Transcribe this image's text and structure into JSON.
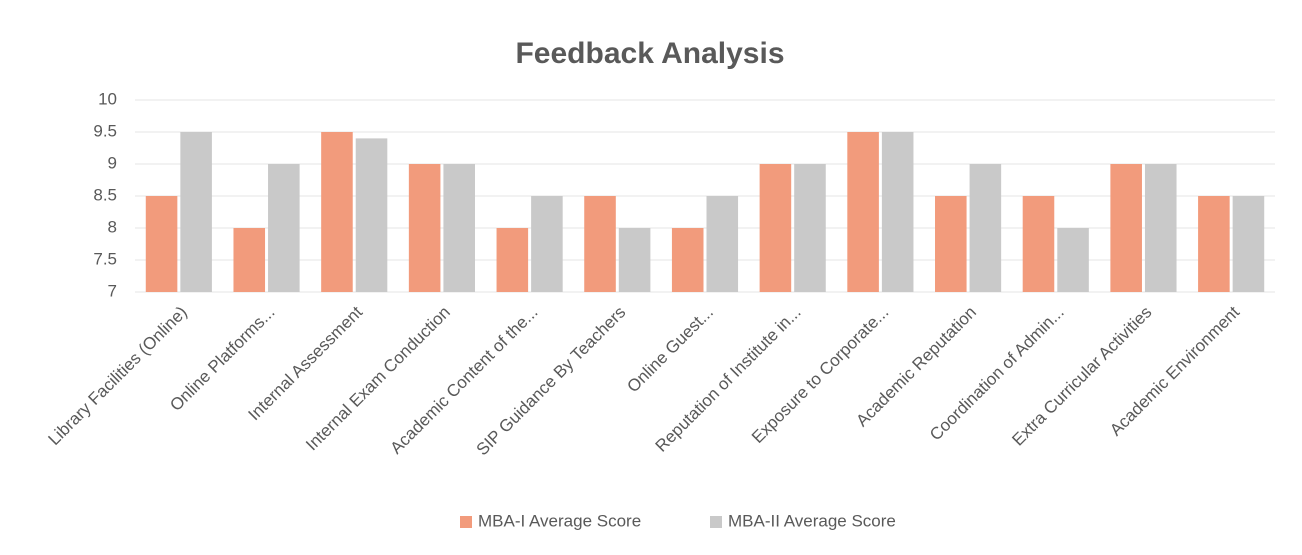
{
  "chart_data": {
    "type": "bar",
    "title": "Feedback Analysis",
    "categories": [
      "Library Facilities (Online)",
      "Online Platforms...",
      "Internal Assessment",
      "Internal Exam Conduction",
      "Academic Content of the...",
      "SIP Guidance By Teachers",
      "Online Guest...",
      "Reputation of Institute in...",
      "Exposure to Corporate...",
      "Academic Reputation",
      "Coordination of Admin...",
      "Extra Curricular Activities",
      "Academic Environment"
    ],
    "series": [
      {
        "name": "MBA-I Average Score",
        "color": "#f29b7c",
        "values": [
          8.5,
          8,
          9.5,
          9,
          8,
          8.5,
          8,
          9,
          9.5,
          8.5,
          8.5,
          9,
          8.5
        ]
      },
      {
        "name": "MBA-II Average Score",
        "color": "#c9c9c9",
        "values": [
          9.5,
          9,
          9.4,
          9,
          8.5,
          8,
          8.5,
          9,
          9.5,
          9,
          8,
          9,
          8.5
        ]
      }
    ],
    "ylim": [
      7,
      10
    ],
    "yticks": [
      7,
      7.5,
      8,
      8.5,
      9,
      9.5,
      10
    ],
    "grid": true,
    "legend": "bottom"
  }
}
